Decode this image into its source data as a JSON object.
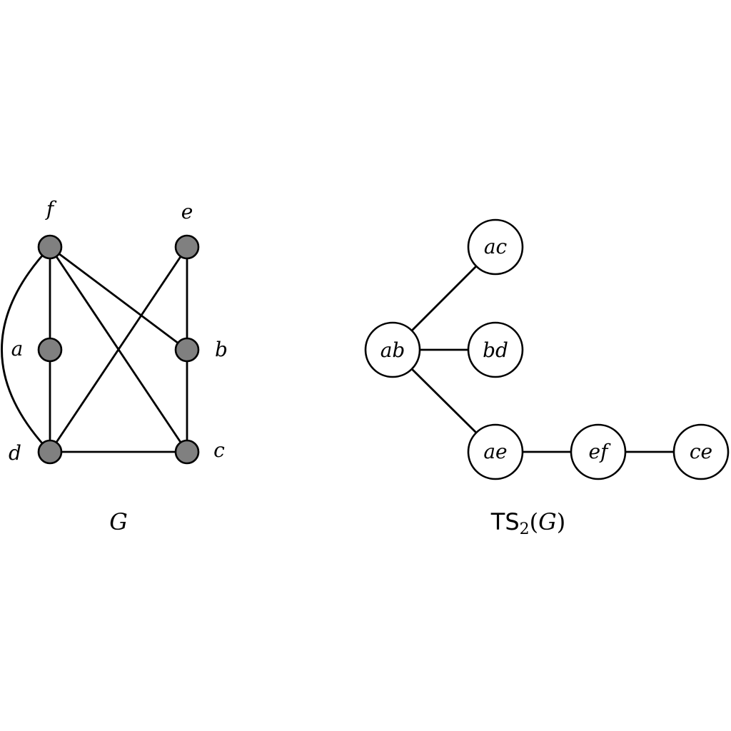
{
  "graph_g": {
    "caption": "G",
    "vertices": [
      {
        "id": "f",
        "label": "f"
      },
      {
        "id": "e",
        "label": "e"
      },
      {
        "id": "a",
        "label": "a"
      },
      {
        "id": "b",
        "label": "b"
      },
      {
        "id": "d",
        "label": "d"
      },
      {
        "id": "c",
        "label": "c"
      }
    ],
    "edges": [
      [
        "f",
        "a"
      ],
      [
        "a",
        "d"
      ],
      [
        "f",
        "d"
      ],
      [
        "f",
        "b"
      ],
      [
        "f",
        "c"
      ],
      [
        "e",
        "b"
      ],
      [
        "b",
        "c"
      ],
      [
        "e",
        "d"
      ],
      [
        "d",
        "c"
      ]
    ]
  },
  "graph_ts": {
    "caption_prefix": "TS",
    "caption_subscript": "2",
    "caption_open": "(",
    "caption_arg": "G",
    "caption_close": ")",
    "vertices": [
      {
        "id": "ac",
        "label": "ac"
      },
      {
        "id": "ab",
        "label": "ab"
      },
      {
        "id": "bd",
        "label": "bd"
      },
      {
        "id": "ae",
        "label": "ae"
      },
      {
        "id": "ef",
        "label": "ef"
      },
      {
        "id": "ce",
        "label": "ce"
      }
    ],
    "edges": [
      [
        "ab",
        "ac"
      ],
      [
        "ab",
        "bd"
      ],
      [
        "ab",
        "ae"
      ],
      [
        "ae",
        "ef"
      ],
      [
        "ef",
        "ce"
      ]
    ]
  },
  "colors": {
    "vertex_fill": "#808080",
    "stroke": "#000000",
    "background": "#ffffff"
  }
}
